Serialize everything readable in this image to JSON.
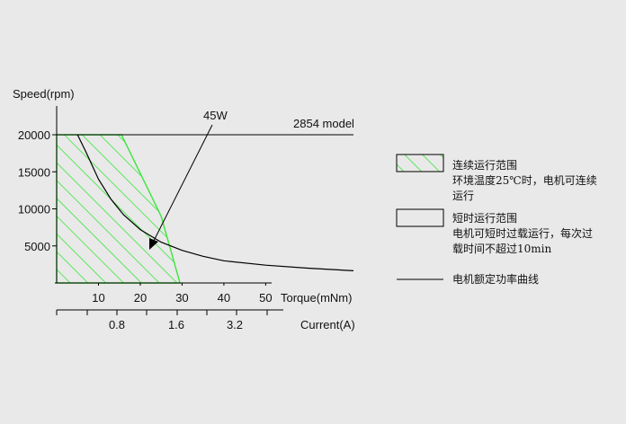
{
  "chart_data": {
    "type": "area",
    "title": "2854 model",
    "ylabel": "Speed(rpm)",
    "xlabel": "Torque(mNm)",
    "secondary_xlabel": "Current(A)",
    "xlim": [
      0,
      71
    ],
    "ylim": [
      0,
      20000
    ],
    "x_ticks": [
      10,
      20,
      30,
      40,
      50
    ],
    "y_ticks": [
      5000,
      10000,
      15000,
      20000
    ],
    "current_tick_labels": [
      "0.8",
      "1.6",
      "3.2"
    ],
    "continuous_region": [
      [
        0,
        0
      ],
      [
        0,
        20000
      ],
      [
        15.5,
        20000
      ],
      [
        25,
        9000
      ],
      [
        29.5,
        0
      ]
    ],
    "power_curve": {
      "label": "45W",
      "x": [
        5,
        7,
        10,
        13,
        16,
        20,
        25,
        30,
        35,
        40,
        50,
        60,
        71
      ],
      "y": [
        20000,
        17700,
        14000,
        11300,
        9200,
        7200,
        5500,
        4400,
        3600,
        3000,
        2400,
        2000,
        1650
      ]
    },
    "legend": [
      {
        "type": "hatched-box",
        "title": "连续运行范围",
        "desc": "环境温度25℃时，电机可连续运行"
      },
      {
        "type": "box",
        "title": "短时运行范围",
        "desc": "电机可短时过载运行，每次过载时间不超过10min"
      },
      {
        "type": "line",
        "title": "电机额定功率曲线"
      }
    ],
    "legend_lines": {
      "l0": "连续运行范围",
      "l1": "环境温度25℃时，电机可连续",
      "l2": "运行",
      "l3": "短时运行范围",
      "l4": "电机可短时过载运行，每次过",
      "l5": "载时间不超过10min",
      "l6": "电机额定功率曲线"
    },
    "colors": {
      "hatch": "#39e639",
      "curve": "#000000",
      "background": "#e9e9e9"
    }
  }
}
